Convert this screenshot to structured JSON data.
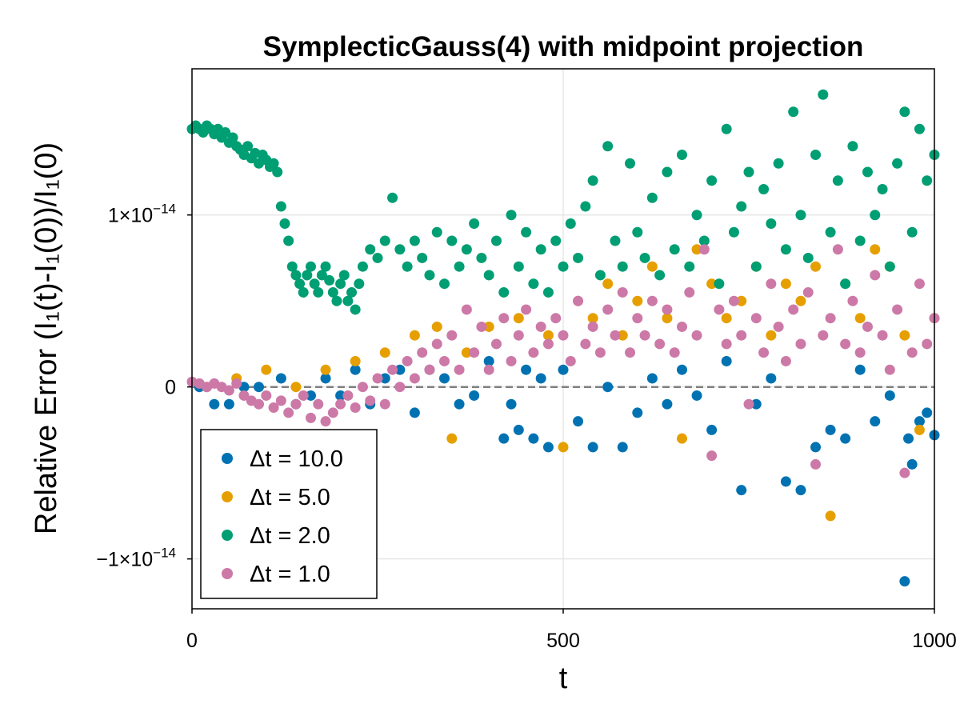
{
  "chart_data": {
    "type": "scatter",
    "title": "SymplecticGauss(4) with midpoint projection",
    "xlabel": "t",
    "ylabel": "Relative Error (I₁(t)-I₁(0))/I₁(0)",
    "xlim": [
      0,
      1000
    ],
    "ylim": [
      -1.29e-14,
      1.85e-14
    ],
    "x_ticks": [
      {
        "value": 0,
        "label": "0"
      },
      {
        "value": 500,
        "label": "500"
      },
      {
        "value": 1000,
        "label": "1000"
      }
    ],
    "y_ticks": [
      {
        "value": -1e-14,
        "base": "−1×10",
        "exp": "−14"
      },
      {
        "value": 0,
        "base": "0",
        "exp": ""
      },
      {
        "value": 1e-14,
        "base": "1×10",
        "exp": "−14"
      }
    ],
    "grid": true,
    "reference_line": {
      "y": 0,
      "style": "dashed",
      "color": "#808080"
    },
    "legend_position": "bottom-left",
    "series": [
      {
        "name": "Δt = 10.0",
        "color": "#0072b2",
        "x": [
          10,
          30,
          50,
          70,
          90,
          120,
          140,
          160,
          180,
          200,
          220,
          240,
          260,
          280,
          300,
          320,
          340,
          360,
          380,
          400,
          420,
          430,
          440,
          450,
          460,
          470,
          480,
          500,
          520,
          540,
          560,
          580,
          600,
          620,
          640,
          660,
          680,
          700,
          720,
          740,
          760,
          780,
          800,
          820,
          840,
          860,
          880,
          900,
          920,
          940,
          960,
          965,
          970,
          980,
          990,
          1000
        ],
        "y": [
          0.0,
          -1e-15,
          -1e-15,
          0.0,
          0.0,
          5e-16,
          -1e-15,
          -5e-16,
          5e-16,
          -5e-16,
          1e-15,
          -1e-15,
          5e-16,
          1e-15,
          -1.5e-15,
          1e-15,
          5e-16,
          -1e-15,
          -5e-16,
          1.5e-15,
          -3e-15,
          -1e-15,
          -2.5e-15,
          1e-15,
          -3e-15,
          5e-16,
          -3.5e-15,
          1e-15,
          -2e-15,
          -3.5e-15,
          0.0,
          -3.5e-15,
          -1.5e-15,
          5e-16,
          -1e-15,
          1e-15,
          -5e-16,
          -2.5e-15,
          1.5e-15,
          -6e-15,
          -1e-15,
          5e-16,
          -5.5e-15,
          -6e-15,
          -3.5e-15,
          -2.5e-15,
          -3e-15,
          1e-15,
          -2e-15,
          -5e-16,
          -1.13e-14,
          -3e-15,
          -4.5e-15,
          -2e-15,
          -1.5e-15,
          -2.8e-15
        ]
      },
      {
        "name": "Δt = 5.0",
        "color": "#e69f00",
        "x": [
          20,
          60,
          100,
          140,
          180,
          220,
          260,
          300,
          330,
          350,
          370,
          400,
          440,
          480,
          500,
          520,
          540,
          560,
          580,
          600,
          620,
          640,
          660,
          680,
          700,
          720,
          740,
          760,
          780,
          800,
          820,
          840,
          860,
          880,
          900,
          920,
          940,
          960,
          980,
          1000
        ],
        "y": [
          0.0,
          5e-16,
          1e-15,
          0.0,
          1e-15,
          1.5e-15,
          2e-15,
          3e-15,
          3.5e-15,
          -3e-15,
          2e-15,
          3.5e-15,
          4e-15,
          3e-15,
          -3.5e-15,
          5e-15,
          4e-15,
          6e-15,
          3e-15,
          5e-15,
          7e-15,
          4e-15,
          -3e-15,
          8e-15,
          6e-15,
          4e-15,
          5e-15,
          7e-15,
          3e-15,
          6e-15,
          5e-15,
          7e-15,
          -7.5e-15,
          6e-15,
          4e-15,
          8e-15,
          7e-15,
          3e-15,
          -2.5e-15,
          4e-15
        ]
      },
      {
        "name": "Δt = 2.0",
        "color": "#009e73",
        "x": [
          0,
          5,
          10,
          15,
          20,
          25,
          30,
          35,
          40,
          45,
          50,
          55,
          60,
          65,
          70,
          75,
          80,
          85,
          90,
          95,
          100,
          105,
          110,
          115,
          120,
          125,
          130,
          135,
          140,
          145,
          150,
          155,
          160,
          165,
          170,
          175,
          180,
          185,
          190,
          195,
          200,
          205,
          210,
          215,
          220,
          225,
          230,
          240,
          250,
          260,
          270,
          280,
          290,
          300,
          310,
          320,
          330,
          340,
          350,
          360,
          370,
          380,
          390,
          400,
          410,
          420,
          430,
          440,
          450,
          460,
          470,
          480,
          490,
          500,
          510,
          520,
          530,
          540,
          550,
          560,
          570,
          580,
          590,
          600,
          610,
          620,
          630,
          640,
          650,
          660,
          670,
          680,
          690,
          700,
          710,
          720,
          730,
          740,
          750,
          760,
          770,
          780,
          790,
          800,
          810,
          820,
          830,
          840,
          850,
          860,
          870,
          880,
          890,
          900,
          910,
          920,
          930,
          940,
          950,
          960,
          970,
          980,
          990,
          1000
        ],
        "y": [
          1.5e-14,
          1.52e-14,
          1.5e-14,
          1.48e-14,
          1.52e-14,
          1.5e-14,
          1.47e-14,
          1.5e-14,
          1.45e-14,
          1.48e-14,
          1.42e-14,
          1.45e-14,
          1.4e-14,
          1.38e-14,
          1.35e-14,
          1.4e-14,
          1.33e-14,
          1.36e-14,
          1.3e-14,
          1.35e-14,
          1.32e-14,
          1.28e-14,
          1.3e-14,
          1.25e-14,
          1.05e-14,
          9.5e-15,
          8.5e-15,
          7e-15,
          6.5e-15,
          6e-15,
          5.5e-15,
          6.5e-15,
          7e-15,
          6e-15,
          5.5e-15,
          6.5e-15,
          7e-15,
          6.2e-15,
          5.5e-15,
          5e-15,
          6e-15,
          6.5e-15,
          5e-15,
          5.5e-15,
          4.5e-15,
          6e-15,
          7e-15,
          8e-15,
          7.5e-15,
          8.5e-15,
          1.1e-14,
          8e-15,
          7e-15,
          8.5e-15,
          7.5e-15,
          6.5e-15,
          9e-15,
          6e-15,
          8.5e-15,
          7e-15,
          8e-15,
          9.5e-15,
          7.5e-15,
          6.5e-15,
          8.5e-15,
          5.5e-15,
          1e-14,
          7e-15,
          9e-15,
          6e-15,
          8e-15,
          5.5e-15,
          8.5e-15,
          7e-15,
          9.5e-15,
          7.5e-15,
          1.05e-14,
          1.2e-14,
          6.5e-15,
          1.4e-14,
          8.5e-15,
          7e-15,
          1.3e-14,
          9e-15,
          7.5e-15,
          1.1e-14,
          6.5e-15,
          1.25e-14,
          8e-15,
          1.35e-14,
          7e-15,
          1e-14,
          8.5e-15,
          1.2e-14,
          6e-15,
          1.5e-14,
          9e-15,
          1.05e-14,
          1.25e-14,
          7e-15,
          1.15e-14,
          9.5e-15,
          1.3e-14,
          8e-15,
          1.6e-14,
          1e-14,
          7.5e-15,
          1.35e-14,
          1.7e-14,
          9e-15,
          1.2e-14,
          6e-15,
          1.4e-14,
          8.5e-15,
          1.25e-14,
          1e-14,
          1.15e-14,
          7e-15,
          1.3e-14,
          1.6e-14,
          9e-15,
          1.5e-14,
          1.2e-14,
          1.35e-14
        ]
      },
      {
        "name": "Δt = 1.0",
        "color": "#cc79a7",
        "x": [
          0,
          10,
          20,
          30,
          40,
          50,
          60,
          70,
          80,
          90,
          100,
          110,
          120,
          130,
          140,
          150,
          160,
          170,
          180,
          190,
          200,
          210,
          220,
          230,
          240,
          250,
          260,
          270,
          280,
          290,
          300,
          310,
          320,
          330,
          340,
          350,
          360,
          370,
          380,
          390,
          400,
          410,
          420,
          430,
          440,
          450,
          460,
          470,
          480,
          490,
          500,
          510,
          520,
          530,
          540,
          550,
          560,
          570,
          580,
          590,
          600,
          610,
          620,
          630,
          640,
          650,
          660,
          670,
          680,
          690,
          700,
          710,
          720,
          730,
          740,
          750,
          760,
          770,
          780,
          790,
          800,
          810,
          820,
          830,
          840,
          850,
          860,
          870,
          880,
          890,
          900,
          910,
          920,
          930,
          940,
          950,
          960,
          970,
          980,
          990,
          1000
        ],
        "y": [
          3e-16,
          2e-16,
          0.0,
          2e-16,
          0.0,
          -2e-16,
          2e-16,
          -5e-16,
          -8e-16,
          -1e-15,
          -5e-16,
          -1.2e-15,
          -8e-16,
          -1.5e-15,
          -1e-15,
          -5e-16,
          -1.8e-15,
          -1e-15,
          -2e-15,
          -1.5e-15,
          -1e-15,
          -5e-16,
          -1.2e-15,
          0.0,
          -8e-16,
          5e-16,
          -1e-15,
          1e-15,
          0.0,
          1.5e-15,
          5e-16,
          2e-15,
          1e-15,
          2.5e-15,
          1.5e-15,
          3e-15,
          1e-15,
          4.5e-15,
          2e-15,
          3.5e-15,
          1e-15,
          2.5e-15,
          4e-15,
          1.5e-15,
          3e-15,
          4.5e-15,
          2e-15,
          3.5e-15,
          2.5e-15,
          4e-15,
          3e-15,
          1.5e-15,
          5e-15,
          2.5e-15,
          3.5e-15,
          2e-15,
          4.5e-15,
          3e-15,
          5.5e-15,
          2e-15,
          4e-15,
          3e-15,
          5e-15,
          2.5e-15,
          4.5e-15,
          2e-15,
          3.5e-15,
          5.5e-15,
          3e-15,
          8e-15,
          -4e-15,
          4.5e-15,
          2.5e-15,
          5e-15,
          3e-15,
          -1e-15,
          4e-15,
          2e-15,
          6e-15,
          3.5e-15,
          1.5e-15,
          4.5e-15,
          2.5e-15,
          5.5e-15,
          -4.5e-15,
          3e-15,
          4e-15,
          8e-15,
          2.5e-15,
          5e-15,
          2e-15,
          3.5e-15,
          6.5e-15,
          3e-15,
          1e-15,
          4.5e-15,
          -5e-15,
          2e-15,
          6e-15,
          2.5e-15,
          4e-15
        ]
      }
    ]
  }
}
